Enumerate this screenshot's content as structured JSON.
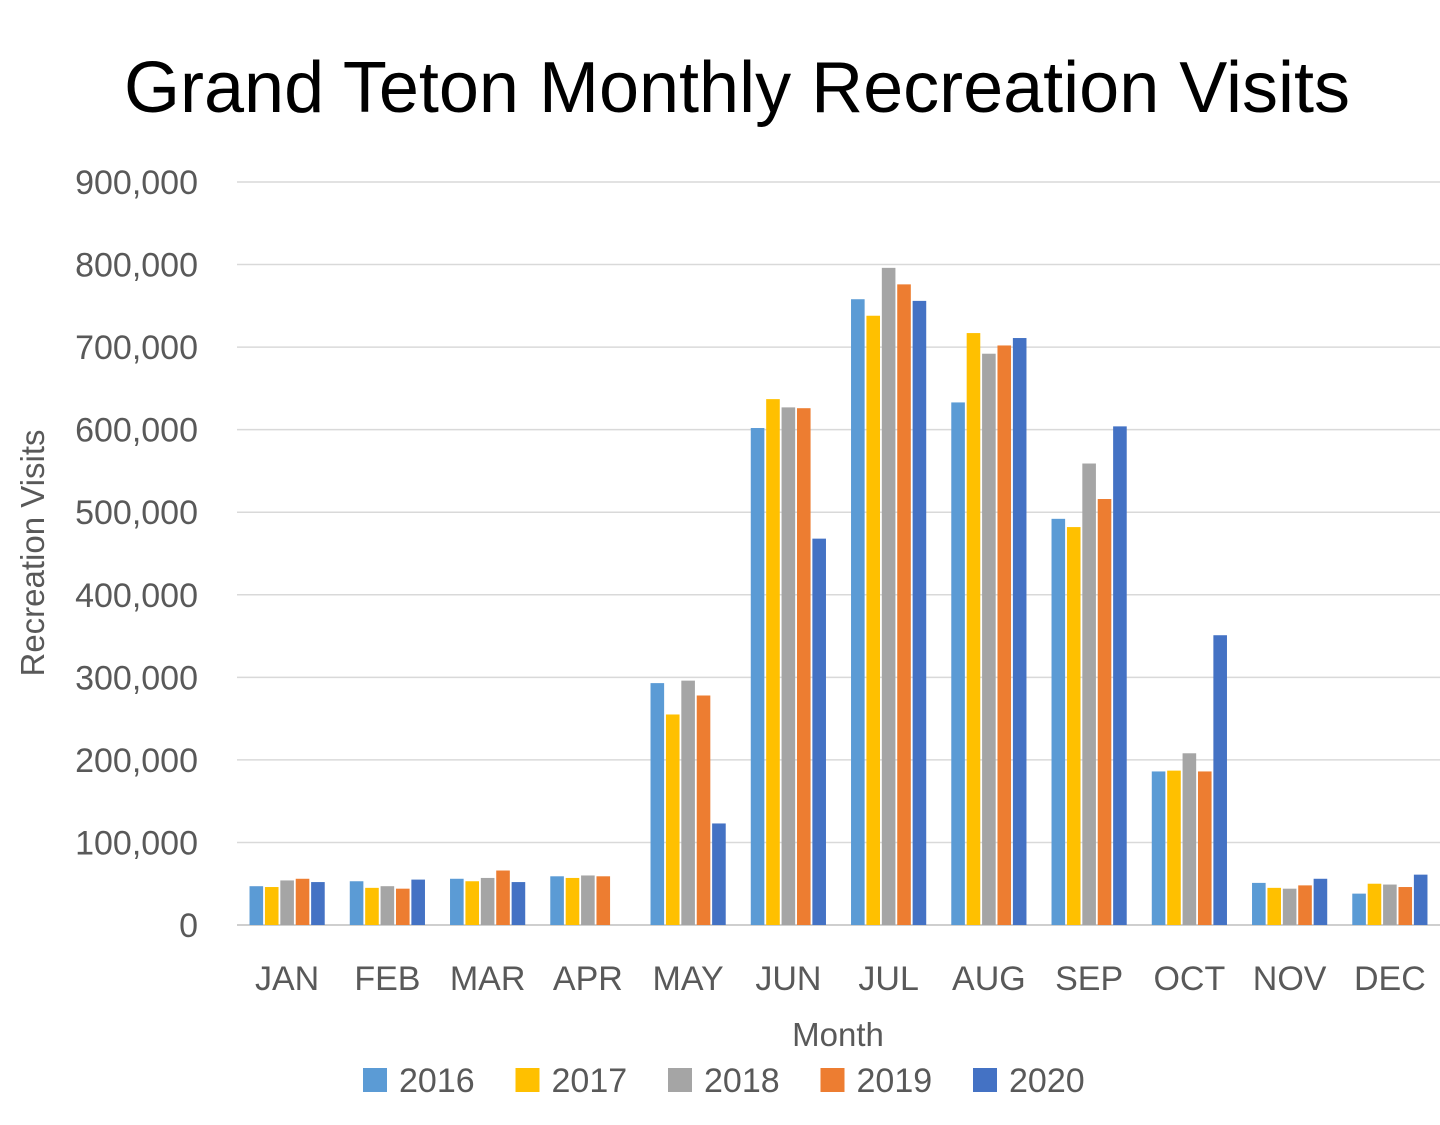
{
  "chart_data": {
    "type": "bar",
    "title": "Grand Teton Monthly Recreation Visits",
    "xlabel": "Month",
    "ylabel": "Recreation Visits",
    "ylim": [
      0,
      900000
    ],
    "yticks": [
      "0",
      "100,000",
      "200,000",
      "300,000",
      "400,000",
      "500,000",
      "600,000",
      "700,000",
      "800,000",
      "900,000"
    ],
    "grid": true,
    "legend_position": "bottom",
    "categories": [
      "JAN",
      "FEB",
      "MAR",
      "APR",
      "MAY",
      "JUN",
      "JUL",
      "AUG",
      "SEP",
      "OCT",
      "NOV",
      "DEC"
    ],
    "series": [
      {
        "name": "2016",
        "color": "#5b9bd5",
        "values": [
          47000,
          53000,
          56000,
          59000,
          293000,
          602000,
          758000,
          633000,
          492000,
          186000,
          51000,
          38000
        ]
      },
      {
        "name": "2017",
        "color": "#ffc000",
        "values": [
          46000,
          45000,
          53000,
          57000,
          255000,
          637000,
          738000,
          717000,
          482000,
          187000,
          45000,
          50000
        ]
      },
      {
        "name": "2018",
        "color": "#a5a5a5",
        "values": [
          54000,
          47000,
          57000,
          60000,
          296000,
          627000,
          796000,
          692000,
          559000,
          208000,
          44000,
          49000
        ]
      },
      {
        "name": "2019",
        "color": "#ed7d31",
        "values": [
          56000,
          44000,
          66000,
          59000,
          278000,
          626000,
          776000,
          702000,
          516000,
          186000,
          48000,
          46000
        ]
      },
      {
        "name": "2020",
        "color": "#4472c4",
        "values": [
          52000,
          55000,
          52000,
          0,
          123000,
          468000,
          756000,
          711000,
          604000,
          351000,
          56000,
          61000
        ]
      }
    ]
  }
}
